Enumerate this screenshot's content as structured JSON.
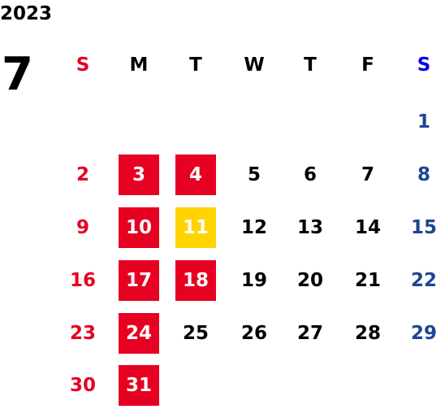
{
  "year": "2023",
  "month": "7",
  "weekdays": [
    "S",
    "M",
    "T",
    "W",
    "T",
    "F",
    "S"
  ],
  "colors": {
    "sunday": "#e60022",
    "saturday_header": "#0000e6",
    "saturday": "#1d4595",
    "highlight_red": "#e60022",
    "highlight_yellow": "#ffd400"
  },
  "weeks": [
    [
      null,
      null,
      null,
      null,
      null,
      null,
      {
        "day": "1"
      }
    ],
    [
      {
        "day": "2"
      },
      {
        "day": "3",
        "highlight": "red"
      },
      {
        "day": "4",
        "highlight": "red"
      },
      {
        "day": "5"
      },
      {
        "day": "6"
      },
      {
        "day": "7"
      },
      {
        "day": "8"
      }
    ],
    [
      {
        "day": "9"
      },
      {
        "day": "10",
        "highlight": "red"
      },
      {
        "day": "11",
        "highlight": "yellow"
      },
      {
        "day": "12"
      },
      {
        "day": "13"
      },
      {
        "day": "14"
      },
      {
        "day": "15"
      }
    ],
    [
      {
        "day": "16"
      },
      {
        "day": "17",
        "highlight": "red"
      },
      {
        "day": "18",
        "highlight": "red"
      },
      {
        "day": "19"
      },
      {
        "day": "20"
      },
      {
        "day": "21"
      },
      {
        "day": "22"
      }
    ],
    [
      {
        "day": "23"
      },
      {
        "day": "24",
        "highlight": "red"
      },
      {
        "day": "25"
      },
      {
        "day": "26"
      },
      {
        "day": "27"
      },
      {
        "day": "28"
      },
      {
        "day": "29"
      }
    ],
    [
      {
        "day": "30"
      },
      {
        "day": "31",
        "highlight": "red"
      },
      null,
      null,
      null,
      null,
      null
    ]
  ]
}
